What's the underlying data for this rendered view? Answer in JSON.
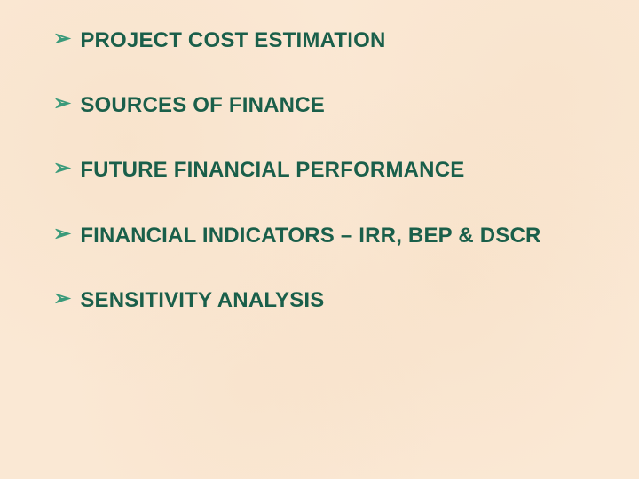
{
  "background_color": "#fae8d4",
  "bullet_color": "#3a9a7a",
  "text_color": "#1a5f4a",
  "font_size_pt": 18,
  "font_weight": "bold",
  "bullet_glyph": "➢",
  "items": [
    "PROJECT COST ESTIMATION",
    "SOURCES OF FINANCE",
    "FUTURE FINANCIAL PERFORMANCE",
    "FINANCIAL INDICATORS – IRR, BEP & DSCR",
    "SENSITIVITY ANALYSIS"
  ]
}
